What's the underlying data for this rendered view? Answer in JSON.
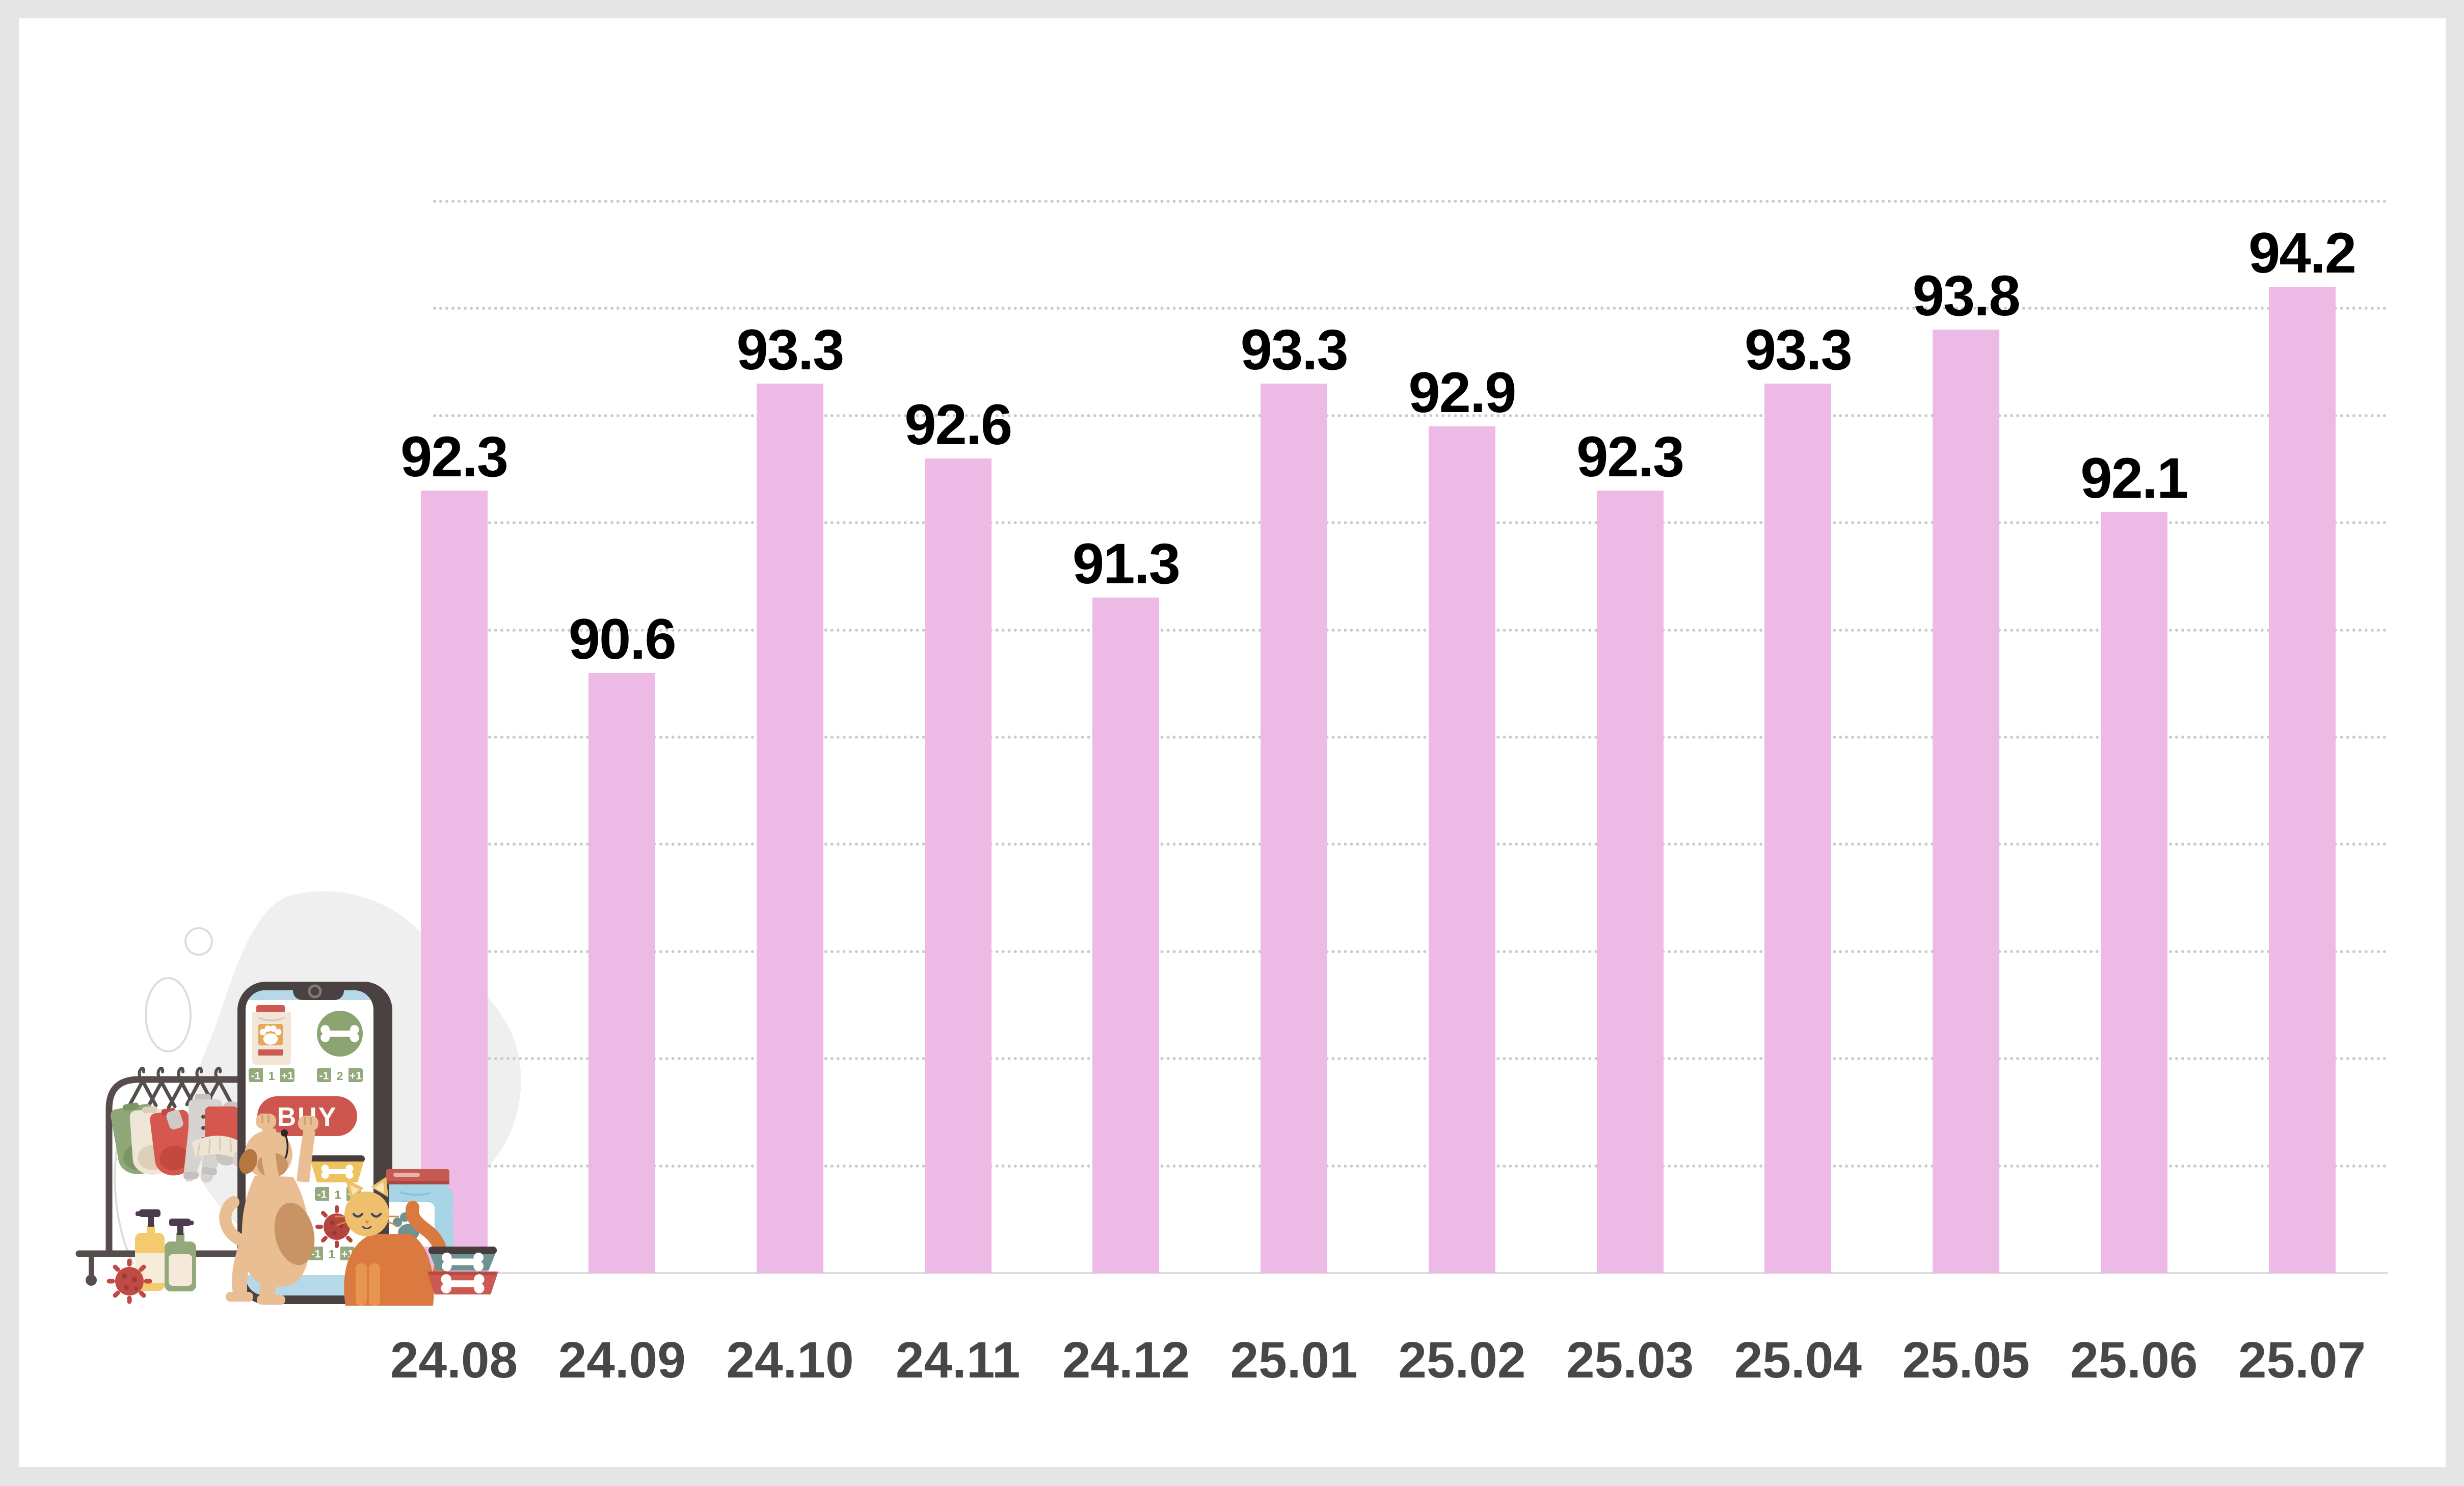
{
  "page": {
    "background_color": "#e5e5e5",
    "card_color": "#ffffff"
  },
  "chart_data": {
    "type": "bar",
    "title": "",
    "xlabel": "",
    "ylabel": "",
    "categories": [
      "24.08",
      "24.09",
      "24.10",
      "24.11",
      "24.12",
      "25.01",
      "25.02",
      "25.03",
      "25.04",
      "25.05",
      "25.06",
      "25.07"
    ],
    "values": [
      92.3,
      90.6,
      93.3,
      92.6,
      91.3,
      93.3,
      92.9,
      92.3,
      93.3,
      93.8,
      92.1,
      94.2
    ],
    "value_labels": [
      "92.3",
      "90.6",
      "93.3",
      "92.6",
      "91.3",
      "93.3",
      "92.9",
      "92.3",
      "93.3",
      "93.8",
      "92.1",
      "94.2"
    ],
    "ylim": [
      85,
      95.6
    ],
    "gridline_values": [
      86,
      87,
      88,
      89,
      90,
      91,
      92,
      93,
      94,
      95
    ],
    "grid_style": "dotted",
    "legend_position": "none",
    "bar_color": "#edbae6",
    "value_label_color": "#000000",
    "axis_label_color": "#474747",
    "gridline_color": "#cbcbcb",
    "baseline_color": "#dcdcdc"
  },
  "illustration": {
    "description": "pet-online-shopping-illustration",
    "buy_label": "BUY",
    "stepper_minus": "-1",
    "stepper_plus": "+1",
    "stepper_values": [
      "1",
      "2",
      "1",
      "1"
    ],
    "colors": {
      "accent_red": "#cd564e",
      "sage_green": "#94a97e",
      "screen_blue": "#b5d9e8",
      "phone_frame": "#4a4141",
      "dog_tan": "#e9be92",
      "cat_orange": "#da7a41",
      "bag_blue": "#a8d5e5",
      "bowl_teal": "#6f9390",
      "bowl_red": "#cc5952",
      "label_yellow": "#eec25f",
      "blob_gray": "#efeff0"
    }
  }
}
